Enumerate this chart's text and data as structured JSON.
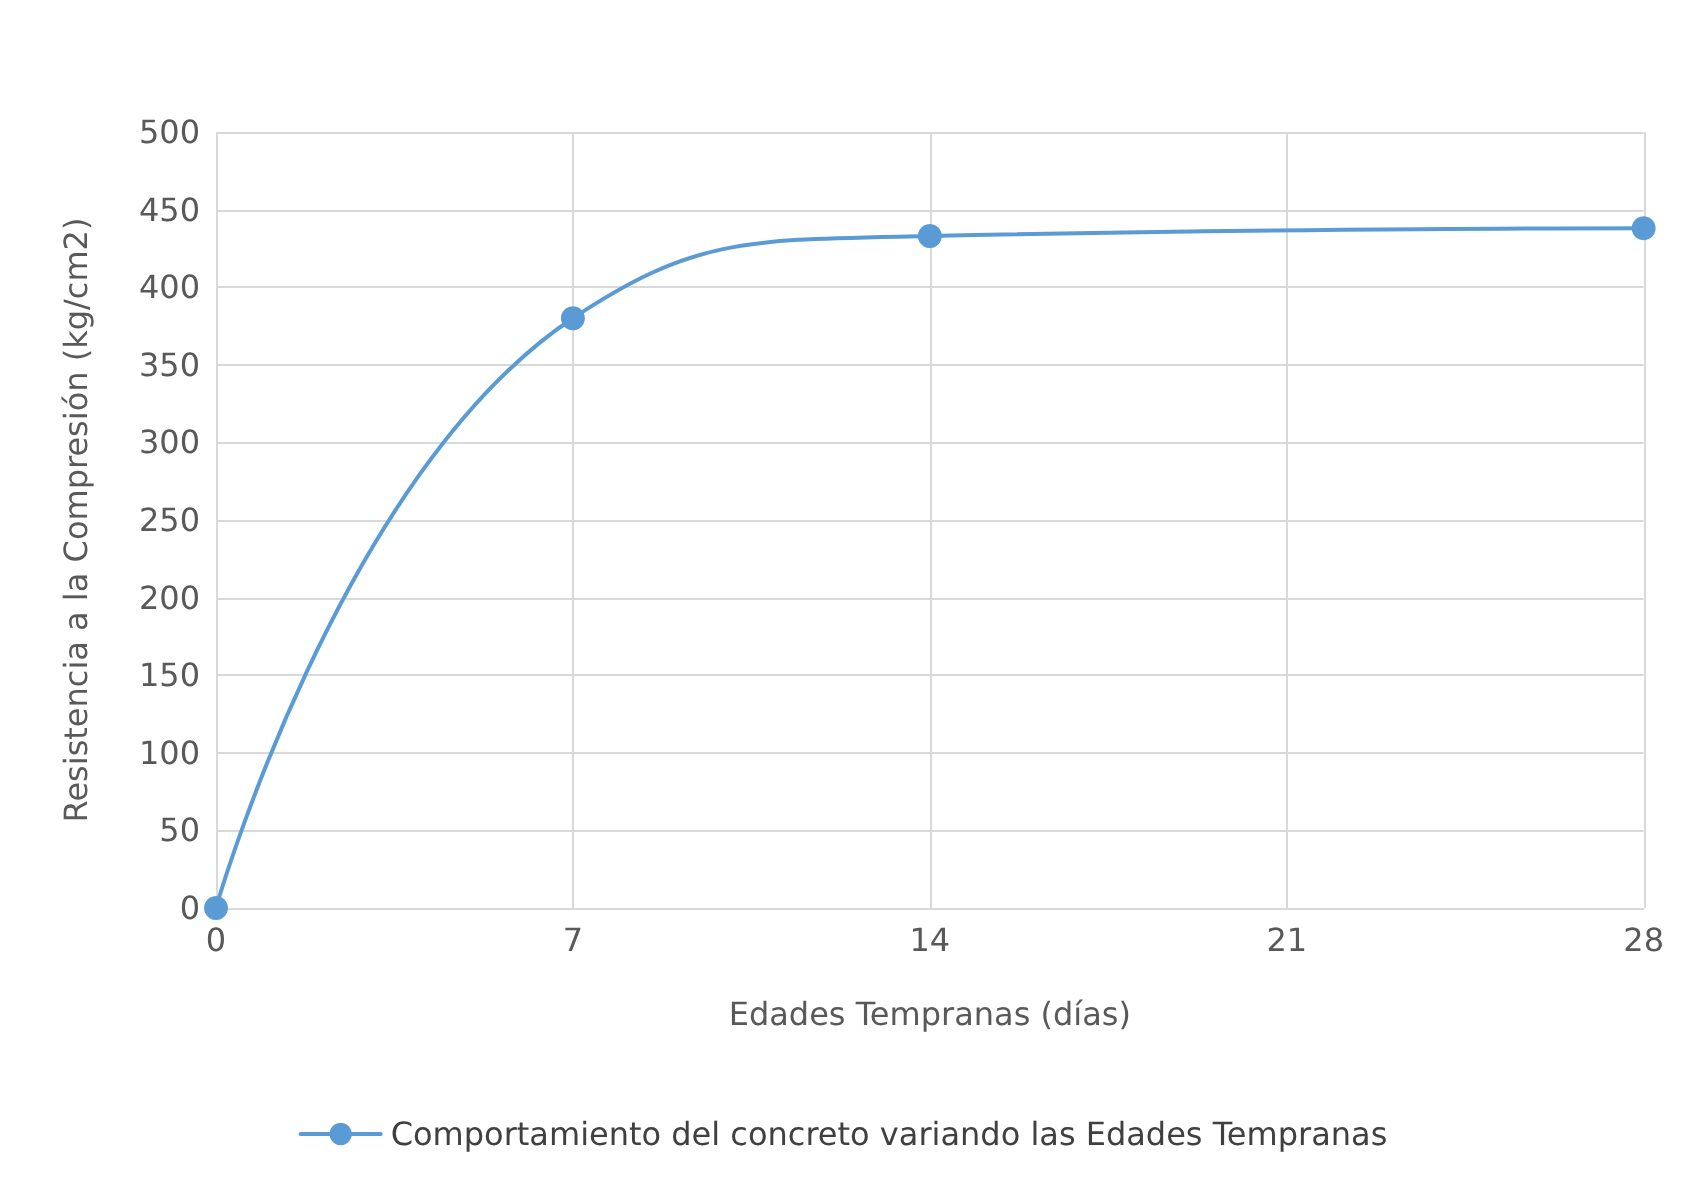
{
  "chart_data": {
    "type": "line",
    "xlabel": "Edades Tempranas (días)",
    "ylabel": "Resistencia a la Compresión (kg/cm2)",
    "x": [
      0,
      7,
      14,
      28
    ],
    "series": [
      {
        "name": "Comportamiento del concreto variando las Edades Tempranas",
        "color": "#5b9bd5",
        "values": [
          0,
          380,
          433,
          438
        ]
      }
    ],
    "xlim": [
      0,
      28
    ],
    "xticks": [
      0,
      7,
      14,
      21,
      28
    ],
    "ylim": [
      0,
      500
    ],
    "yticks": [
      0,
      50,
      100,
      150,
      200,
      250,
      300,
      350,
      400,
      450,
      500
    ],
    "grid": true,
    "legend": "bottom",
    "marker": "circle",
    "line_style": "solid"
  }
}
